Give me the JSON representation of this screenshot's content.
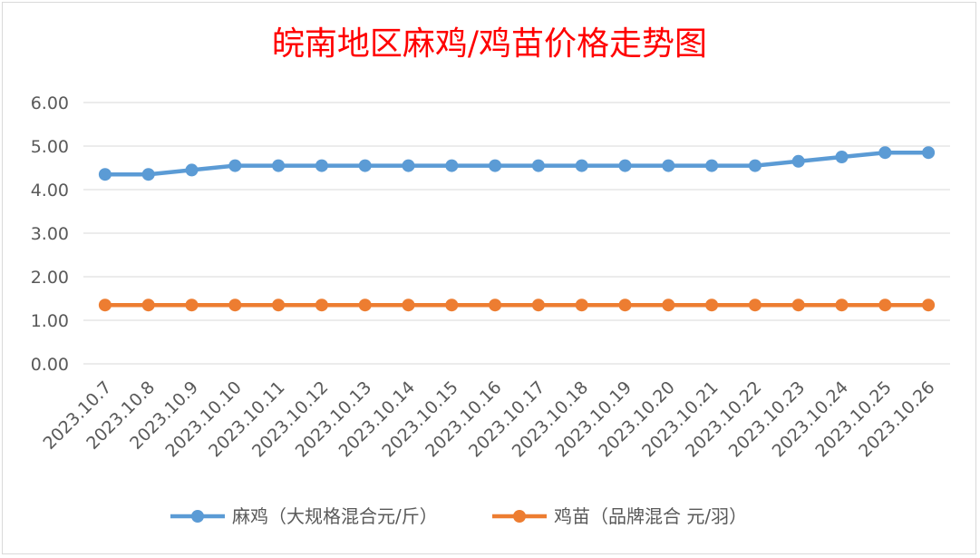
{
  "chart_data": {
    "type": "line",
    "title": "皖南地区麻鸡/鸡苗价格走势图",
    "xlabel": "",
    "ylabel": "",
    "categories": [
      "2023.10.7",
      "2023.10.8",
      "2023.10.9",
      "2023.10.10",
      "2023.10.11",
      "2023.10.12",
      "2023.10.13",
      "2023.10.14",
      "2023.10.15",
      "2023.10.16",
      "2023.10.17",
      "2023.10.18",
      "2023.10.19",
      "2023.10.20",
      "2023.10.21",
      "2023.10.22",
      "2023.10.23",
      "2023.10.24",
      "2023.10.25",
      "2023.10.26"
    ],
    "ylim": [
      0,
      6
    ],
    "yticks": [
      "0.00",
      "1.00",
      "2.00",
      "3.00",
      "4.00",
      "5.00",
      "6.00"
    ],
    "grid": true,
    "legend_position": "bottom",
    "series": [
      {
        "name": "麻鸡（大规格混合元/斤）",
        "color": "#5b9bd5",
        "values": [
          4.35,
          4.35,
          4.45,
          4.55,
          4.55,
          4.55,
          4.55,
          4.55,
          4.55,
          4.55,
          4.55,
          4.55,
          4.55,
          4.55,
          4.55,
          4.55,
          4.65,
          4.75,
          4.85,
          4.85
        ]
      },
      {
        "name": "鸡苗（品牌混合 元/羽）",
        "color": "#ed7d31",
        "values": [
          1.35,
          1.35,
          1.35,
          1.35,
          1.35,
          1.35,
          1.35,
          1.35,
          1.35,
          1.35,
          1.35,
          1.35,
          1.35,
          1.35,
          1.35,
          1.35,
          1.35,
          1.35,
          1.35,
          1.35
        ]
      }
    ]
  }
}
